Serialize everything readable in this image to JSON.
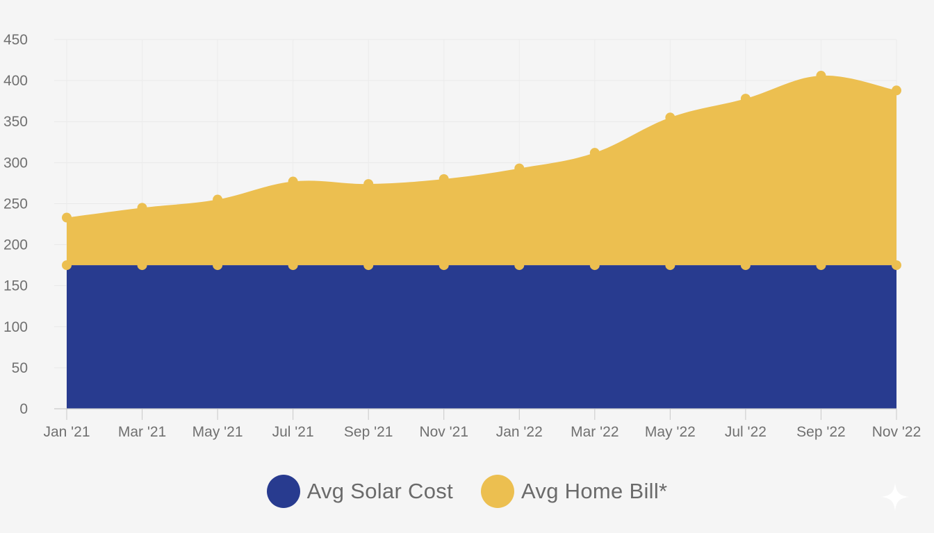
{
  "chart_data": {
    "type": "area",
    "stacked": true,
    "categories": [
      "Jan '21",
      "Mar '21",
      "May '21",
      "Jul '21",
      "Sep '21",
      "Nov '21",
      "Jan '22",
      "Mar '22",
      "May '22",
      "Jul '22",
      "Sep '22",
      "Nov '22"
    ],
    "series": [
      {
        "name": "Avg Solar Cost",
        "color": "#283b8f",
        "values": [
          175,
          175,
          175,
          175,
          175,
          175,
          175,
          175,
          175,
          175,
          175,
          175
        ]
      },
      {
        "name": "Avg Home Bill*",
        "color": "#ecbf50",
        "values": [
          58,
          70,
          80,
          102,
          99,
          105,
          118,
          137,
          180,
          203,
          231,
          213
        ]
      }
    ],
    "stacked_totals": [
      233,
      245,
      255,
      277,
      274,
      280,
      293,
      312,
      355,
      378,
      406,
      388
    ],
    "ylim": [
      0,
      450
    ],
    "yticks": [
      0,
      50,
      100,
      150,
      200,
      250,
      300,
      350,
      400,
      450
    ],
    "grid": true,
    "legend_position": "bottom-center",
    "title": "",
    "xlabel": "",
    "ylabel": ""
  },
  "legend": {
    "items": [
      {
        "label": "Avg Solar Cost",
        "color": "#283b8f"
      },
      {
        "label": "Avg Home Bill*",
        "color": "#ecbf50"
      }
    ]
  },
  "decoration": {
    "sparkle_icon": "sparkle-icon"
  }
}
